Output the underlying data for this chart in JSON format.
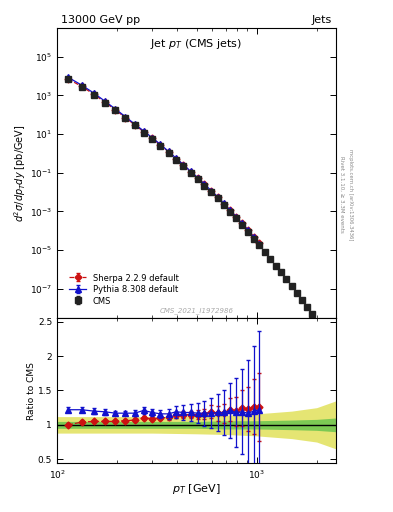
{
  "title_left": "13000 GeV pp",
  "title_right": "Jets",
  "plot_title": "Jet $p_T$ (CMS jets)",
  "xlabel": "$p_T$ [GeV]",
  "ylabel_main": "$d^2\\sigma/dp_Tdy$ [pb/GeV]",
  "ylabel_ratio": "Ratio to CMS",
  "watermark": "CMS_2021_I1972986",
  "right_label1": "Rivet 3.1.10, ≥ 3.3M events",
  "right_label2": "mcplots.cern.ch [arXiv:1306.3436]",
  "cms_pt": [
    114,
    133,
    153,
    174,
    196,
    220,
    245,
    272,
    300,
    330,
    362,
    395,
    430,
    468,
    507,
    548,
    592,
    638,
    686,
    737,
    790,
    846,
    905,
    967,
    1032,
    1101,
    1172,
    1248,
    1327,
    1410,
    1497,
    1588,
    1684,
    1784,
    1890
  ],
  "cms_vals": [
    7000,
    2800,
    1100,
    420,
    170,
    68,
    28,
    12,
    5.5,
    2.5,
    1.1,
    0.48,
    0.22,
    0.1,
    0.047,
    0.022,
    0.01,
    0.0048,
    0.0022,
    0.00095,
    0.00045,
    0.0002,
    9.2e-05,
    4e-05,
    1.8e-05,
    8e-06,
    3.5e-06,
    1.6e-06,
    7e-07,
    3.1e-07,
    1.4e-07,
    6e-08,
    2.7e-08,
    1.2e-08,
    5.2e-09
  ],
  "cms_yerr": [
    200,
    90,
    38,
    14,
    6,
    2.3,
    1.0,
    0.4,
    0.18,
    0.08,
    0.036,
    0.016,
    0.0074,
    0.0034,
    0.0016,
    0.00073,
    0.00034,
    0.00016,
    7.5e-05,
    3.2e-05,
    1.5e-05,
    6.8e-06,
    3.1e-06,
    1.4e-06,
    6.1e-07,
    2.7e-07,
    1.2e-07,
    5.4e-08,
    2.4e-08,
    1.05e-08,
    4.7e-09,
    2e-09,
    9.2e-10,
    4.1e-10,
    1.8e-10
  ],
  "pythia_pt": [
    114,
    133,
    153,
    174,
    196,
    220,
    245,
    272,
    300,
    330,
    362,
    395,
    430,
    468,
    507,
    548,
    592,
    638,
    686,
    737,
    790,
    846,
    905,
    967,
    1032
  ],
  "pythia_vals": [
    8500,
    3400,
    1320,
    500,
    200,
    80,
    33,
    14.5,
    6.5,
    2.9,
    1.28,
    0.57,
    0.26,
    0.118,
    0.055,
    0.026,
    0.012,
    0.0057,
    0.0026,
    0.00115,
    0.00053,
    0.00024,
    0.000108,
    4.8e-05,
    2.2e-05
  ],
  "pythia_yerr": [
    120,
    50,
    20,
    7.5,
    3.0,
    1.2,
    0.5,
    0.22,
    0.098,
    0.044,
    0.019,
    0.0086,
    0.0039,
    0.00177,
    0.00082,
    0.00039,
    0.00018,
    8.6e-05,
    3.9e-05,
    1.7e-05,
    8e-06,
    3.6e-06,
    1.6e-06,
    7.2e-07,
    3.3e-07
  ],
  "sherpa_pt": [
    114,
    133,
    153,
    174,
    196,
    220,
    245,
    272,
    300,
    330,
    362,
    395,
    430,
    468,
    507,
    548,
    592,
    638,
    686,
    737,
    790,
    846,
    905,
    967,
    1032
  ],
  "sherpa_vals": [
    7000,
    2900,
    1150,
    440,
    178,
    72,
    30,
    13.2,
    6.0,
    2.75,
    1.22,
    0.546,
    0.252,
    0.115,
    0.054,
    0.0255,
    0.01185,
    0.0056,
    0.00258,
    0.00116,
    0.00054,
    0.000248,
    0.000113,
    5.05e-05,
    2.26e-05
  ],
  "sherpa_yerr": [
    100,
    43,
    17,
    6.6,
    2.7,
    1.08,
    0.45,
    0.198,
    0.09,
    0.041,
    0.018,
    0.0082,
    0.00378,
    0.00173,
    0.00081,
    0.000383,
    0.000178,
    8.4e-05,
    3.87e-05,
    1.74e-05,
    8.1e-06,
    3.72e-06,
    1.7e-06,
    7.6e-07,
    3.4e-07
  ],
  "pythia_ratio_pt": [
    114,
    133,
    153,
    174,
    196,
    220,
    245,
    272,
    300,
    330,
    362,
    395,
    430,
    468,
    507,
    548,
    592,
    638,
    686,
    737,
    790,
    846,
    905,
    967,
    1032
  ],
  "pythia_ratio": [
    1.22,
    1.22,
    1.2,
    1.19,
    1.17,
    1.17,
    1.17,
    1.21,
    1.18,
    1.16,
    1.16,
    1.19,
    1.18,
    1.18,
    1.17,
    1.17,
    1.17,
    1.18,
    1.18,
    1.21,
    1.18,
    1.19,
    1.17,
    1.2,
    1.22
  ],
  "pythia_ratio_err": [
    0.04,
    0.04,
    0.04,
    0.04,
    0.03,
    0.03,
    0.04,
    0.05,
    0.05,
    0.06,
    0.07,
    0.09,
    0.11,
    0.13,
    0.15,
    0.18,
    0.22,
    0.27,
    0.33,
    0.4,
    0.5,
    0.62,
    0.78,
    0.95,
    1.15
  ],
  "sherpa_ratio_pt": [
    114,
    133,
    153,
    174,
    196,
    220,
    245,
    272,
    300,
    330,
    362,
    395,
    430,
    468,
    507,
    548,
    592,
    638,
    686,
    737,
    790,
    846,
    905,
    967,
    1032
  ],
  "sherpa_ratio": [
    1.0,
    1.04,
    1.05,
    1.05,
    1.05,
    1.06,
    1.07,
    1.1,
    1.09,
    1.1,
    1.11,
    1.14,
    1.15,
    1.15,
    1.15,
    1.16,
    1.19,
    1.17,
    1.17,
    1.22,
    1.2,
    1.24,
    1.23,
    1.26,
    1.26
  ],
  "sherpa_ratio_err": [
    0.02,
    0.025,
    0.025,
    0.025,
    0.025,
    0.025,
    0.027,
    0.03,
    0.032,
    0.033,
    0.036,
    0.041,
    0.048,
    0.056,
    0.065,
    0.077,
    0.093,
    0.11,
    0.14,
    0.17,
    0.21,
    0.26,
    0.32,
    0.4,
    0.49
  ],
  "band_pt": [
    100,
    120,
    150,
    200,
    300,
    500,
    700,
    1000,
    1500,
    2000,
    2500
  ],
  "band_green_lo": [
    0.95,
    0.95,
    0.95,
    0.95,
    0.95,
    0.95,
    0.94,
    0.94,
    0.93,
    0.92,
    0.9
  ],
  "band_green_hi": [
    1.05,
    1.05,
    1.05,
    1.05,
    1.05,
    1.05,
    1.06,
    1.06,
    1.07,
    1.08,
    1.1
  ],
  "band_yellow_lo": [
    0.88,
    0.88,
    0.88,
    0.88,
    0.88,
    0.87,
    0.86,
    0.84,
    0.8,
    0.75,
    0.65
  ],
  "band_yellow_hi": [
    1.12,
    1.12,
    1.12,
    1.12,
    1.12,
    1.13,
    1.14,
    1.16,
    1.2,
    1.25,
    1.35
  ],
  "cms_color": "#222222",
  "pythia_color": "#1111cc",
  "sherpa_color": "#cc1111",
  "green_color": "#44bb44",
  "yellow_color": "#dddd44",
  "xlim": [
    100,
    2500
  ],
  "ylim_main": [
    3e-09,
    3000000.0
  ],
  "ylim_ratio": [
    0.44,
    2.55
  ],
  "ratio_yticks": [
    0.5,
    1.0,
    1.5,
    2.0,
    2.5
  ],
  "ratio_ytick_labels": [
    "0.5",
    "1",
    "1.5",
    "2",
    "2.5"
  ]
}
